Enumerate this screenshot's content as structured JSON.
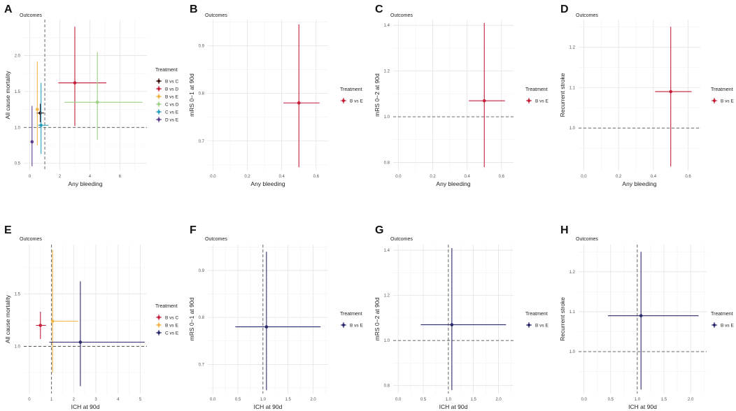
{
  "chart_data": [
    {
      "type": "scatter",
      "panel_label": "A",
      "title": "Outcomes",
      "xlabel": "Any bleeding",
      "ylabel": "All cause mortality",
      "xlim": [
        -0.4,
        7.8
      ],
      "ylim": [
        0.4,
        2.5
      ],
      "xticks": [
        0,
        2,
        4,
        6
      ],
      "yticks": [
        0.5,
        1.0,
        1.5,
        2.0
      ],
      "xticklabels": [
        "0",
        "2",
        "4",
        "6"
      ],
      "yticklabels": [
        "0.5",
        "1.0",
        "1.5",
        "2.0"
      ],
      "hline": 1.0,
      "vline": 1.0,
      "legend": {
        "title": "Treatment"
      },
      "series": [
        {
          "name": "B vs C",
          "color": "#3d1111",
          "x": 0.7,
          "xlo": 0.45,
          "xhi": 0.95,
          "y": 1.2,
          "ylo": 1.07,
          "yhi": 1.33
        },
        {
          "name": "B vs D",
          "color": "#c41e3a",
          "x": 3.0,
          "xlo": 1.9,
          "xhi": 5.1,
          "y": 1.62,
          "ylo": 1.02,
          "yhi": 2.4
        },
        {
          "name": "B vs E",
          "color": "#f0b447",
          "x": 0.5,
          "xlo": 0.45,
          "xhi": 0.6,
          "y": 1.25,
          "ylo": 0.75,
          "yhi": 1.92
        },
        {
          "name": "C vs D",
          "color": "#9ed087",
          "x": 4.5,
          "xlo": 2.3,
          "xhi": 7.5,
          "y": 1.35,
          "ylo": 0.83,
          "yhi": 2.05
        },
        {
          "name": "C vs E",
          "color": "#2a9fbc",
          "x": 0.75,
          "xlo": 0.55,
          "xhi": 1.25,
          "y": 1.03,
          "ylo": 0.63,
          "yhi": 1.62
        },
        {
          "name": "D vs E",
          "color": "#5c3a8e",
          "x": 0.15,
          "xlo": 0.1,
          "xhi": 0.2,
          "y": 0.8,
          "ylo": 0.46,
          "yhi": 1.3
        }
      ]
    },
    {
      "type": "scatter",
      "panel_label": "B",
      "title": "Outcomes",
      "xlabel": "Any bleeding",
      "ylabel": "mRS 0−1 at 90d",
      "xlim": [
        -0.03,
        0.67
      ],
      "ylim": [
        0.638,
        0.955
      ],
      "xticks": [
        0,
        0.2,
        0.4,
        0.6
      ],
      "yticks": [
        0.7,
        0.8,
        0.9
      ],
      "xticklabels": [
        "0.0",
        "0.2",
        "0.4",
        "0.6"
      ],
      "yticklabels": [
        "0.7",
        "0.8",
        "0.9"
      ],
      "hline": null,
      "vline": null,
      "legend": {
        "title": "Treatment"
      },
      "series": [
        {
          "name": "B vs E",
          "color": "#c41e3a",
          "x": 0.5,
          "xlo": 0.41,
          "xhi": 0.62,
          "y": 0.78,
          "ylo": 0.645,
          "yhi": 0.945
        }
      ]
    },
    {
      "type": "scatter",
      "panel_label": "C",
      "title": "Outcomes",
      "xlabel": "Any bleeding",
      "ylabel": "mRS 0−2 at 90d",
      "xlim": [
        -0.03,
        0.67
      ],
      "ylim": [
        0.765,
        1.425
      ],
      "xticks": [
        0,
        0.2,
        0.4,
        0.6
      ],
      "yticks": [
        0.8,
        1.0,
        1.2,
        1.4
      ],
      "xticklabels": [
        "0.0",
        "0.2",
        "0.4",
        "0.6"
      ],
      "yticklabels": [
        "0.8",
        "1.0",
        "1.2",
        "1.4"
      ],
      "hline": 1.0,
      "vline": null,
      "legend": {
        "title": "Treatment"
      },
      "series": [
        {
          "name": "B vs E",
          "color": "#c41e3a",
          "x": 0.5,
          "xlo": 0.41,
          "xhi": 0.62,
          "y": 1.07,
          "ylo": 0.78,
          "yhi": 1.41
        }
      ]
    },
    {
      "type": "scatter",
      "panel_label": "D",
      "title": "Outcomes",
      "xlabel": "Any bleeding",
      "ylabel": "Recurrent stroke",
      "xlim": [
        -0.03,
        0.67
      ],
      "ylim": [
        0.895,
        1.268
      ],
      "xticks": [
        0,
        0.2,
        0.4,
        0.6
      ],
      "yticks": [
        1.0,
        1.1,
        1.2
      ],
      "xticklabels": [
        "0.0",
        "0.2",
        "0.4",
        "0.6"
      ],
      "yticklabels": [
        "1.0",
        "1.1",
        "1.2"
      ],
      "hline": 1.0,
      "vline": null,
      "legend": {
        "title": "Treatment"
      },
      "series": [
        {
          "name": "B vs E",
          "color": "#c41e3a",
          "x": 0.5,
          "xlo": 0.41,
          "xhi": 0.62,
          "y": 1.09,
          "ylo": 0.905,
          "yhi": 1.25
        }
      ]
    },
    {
      "type": "scatter",
      "panel_label": "E",
      "title": "Outcomes",
      "xlabel": "ICH at 90d",
      "ylabel": "All cause mortality",
      "xlim": [
        -0.25,
        5.3
      ],
      "ylim": [
        0.55,
        1.97
      ],
      "xticks": [
        0,
        1,
        2,
        3,
        4,
        5
      ],
      "yticks": [
        1.0,
        1.5
      ],
      "xticklabels": [
        "0",
        "1",
        "2",
        "3",
        "4",
        "5"
      ],
      "yticklabels": [
        "1.0",
        "1.5"
      ],
      "hline": 1.0,
      "vline": 1.0,
      "legend": {
        "title": "Treatment"
      },
      "series": [
        {
          "name": "B vs C",
          "color": "#c41e3a",
          "x": 0.5,
          "xlo": 0.3,
          "xhi": 0.75,
          "y": 1.2,
          "ylo": 1.07,
          "yhi": 1.33
        },
        {
          "name": "B vs E",
          "color": "#f0b447",
          "x": 1.05,
          "xlo": 1.02,
          "xhi": 2.2,
          "y": 1.24,
          "ylo": 0.75,
          "yhi": 1.92
        },
        {
          "name": "C vs E",
          "color": "#2b2a6b",
          "x": 2.3,
          "xlo": 0.9,
          "xhi": 5.2,
          "y": 1.04,
          "ylo": 0.62,
          "yhi": 1.62
        }
      ]
    },
    {
      "type": "scatter",
      "panel_label": "F",
      "title": "Outcomes",
      "xlabel": "ICH at 90d",
      "ylabel": "mRS 0−1 at 90d",
      "xlim": [
        -0.1,
        2.3
      ],
      "ylim": [
        0.638,
        0.955
      ],
      "xticks": [
        0,
        0.5,
        1.0,
        1.5,
        2.0
      ],
      "yticks": [
        0.7,
        0.8,
        0.9
      ],
      "xticklabels": [
        "0.0",
        "0.5",
        "1.0",
        "1.5",
        "2.0"
      ],
      "yticklabels": [
        "0.7",
        "0.8",
        "0.9"
      ],
      "hline": null,
      "vline": 1.0,
      "legend": {
        "title": "Treatment"
      },
      "series": [
        {
          "name": "B vs E",
          "color": "#2b2a6b",
          "x": 1.07,
          "xlo": 0.45,
          "xhi": 2.15,
          "y": 0.78,
          "ylo": 0.645,
          "yhi": 0.94
        }
      ]
    },
    {
      "type": "scatter",
      "panel_label": "G",
      "title": "Outcomes",
      "xlabel": "ICH at 90d",
      "ylabel": "mRS 0−2 at 90d",
      "xlim": [
        -0.1,
        2.3
      ],
      "ylim": [
        0.765,
        1.425
      ],
      "xticks": [
        0,
        0.5,
        1.0,
        1.5,
        2.0
      ],
      "yticks": [
        0.8,
        1.0,
        1.2,
        1.4
      ],
      "xticklabels": [
        "0.0",
        "0.5",
        "1.0",
        "1.5",
        "2.0"
      ],
      "yticklabels": [
        "0.8",
        "1.0",
        "1.2",
        "1.4"
      ],
      "hline": 1.0,
      "vline": 1.0,
      "legend": {
        "title": "Treatment"
      },
      "series": [
        {
          "name": "B vs E",
          "color": "#2b2a6b",
          "x": 1.07,
          "xlo": 0.45,
          "xhi": 2.15,
          "y": 1.07,
          "ylo": 0.78,
          "yhi": 1.41
        }
      ]
    },
    {
      "type": "scatter",
      "panel_label": "H",
      "title": "Outcomes",
      "xlabel": "ICH at 90d",
      "ylabel": "Recurrent stroke",
      "xlim": [
        -0.1,
        2.3
      ],
      "ylim": [
        0.895,
        1.268
      ],
      "xticks": [
        0,
        0.5,
        1.0,
        1.5,
        2.0
      ],
      "yticks": [
        1.0,
        1.1,
        1.2
      ],
      "xticklabels": [
        "0.0",
        "0.5",
        "1.0",
        "1.5",
        "2.0"
      ],
      "yticklabels": [
        "1.0",
        "1.1",
        "1.2"
      ],
      "hline": 1.0,
      "vline": 1.0,
      "legend": {
        "title": "Treatment"
      },
      "series": [
        {
          "name": "B vs E",
          "color": "#2b2a6b",
          "x": 1.07,
          "xlo": 0.45,
          "xhi": 2.15,
          "y": 1.09,
          "ylo": 0.905,
          "yhi": 1.25
        }
      ]
    }
  ]
}
